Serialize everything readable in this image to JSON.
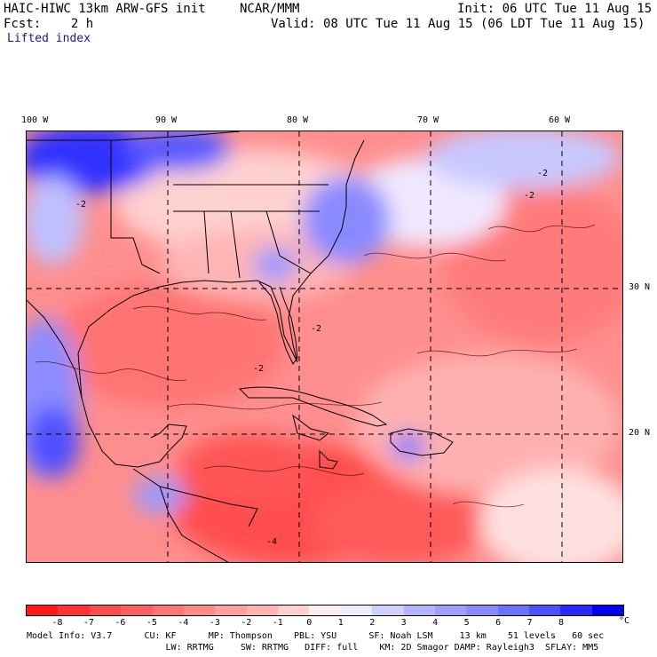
{
  "header": {
    "model": "HAIC-HIWC 13km ARW-GFS init",
    "org": "NCAR/MMM",
    "init": "Init: 06 UTC Tue 11 Aug 15",
    "fcst": "Fcst:    2 h",
    "valid": "Valid: 08 UTC Tue 11 Aug 15 (06 LDT Tue 11 Aug 15)",
    "field": "Lifted index"
  },
  "map": {
    "lon_labels": [
      "100 W",
      "90 W",
      "80 W",
      "70 W",
      "60 W"
    ],
    "lat_labels": [
      "30 N",
      "20 N"
    ],
    "contour_labels": [
      "-2",
      "-2",
      "-2",
      "-2",
      "-2",
      "-4"
    ]
  },
  "colorbar": {
    "ticks": [
      "-8",
      "-7",
      "-6",
      "-5",
      "-4",
      "-3",
      "-2",
      "-1",
      "0",
      "1",
      "2",
      "3",
      "4",
      "5",
      "6",
      "7",
      "8"
    ],
    "unit": "°C",
    "colors": [
      "#ff1a1a",
      "#ff3333",
      "#ff4d4d",
      "#ff6161",
      "#ff7676",
      "#ff8a8a",
      "#ff9f9f",
      "#ffb4b4",
      "#ffd0d0",
      "#ffecec",
      "#ececff",
      "#d0d0ff",
      "#b4b4ff",
      "#9f9fff",
      "#8a8aff",
      "#7070ff",
      "#5050ff",
      "#2a2aff",
      "#0000ee"
    ]
  },
  "footer": {
    "line1": "Model Info: V3.7      CU: KF      MP: Thompson    PBL: YSU      SF: Noah LSM     13 km    51 levels   60 sec",
    "line2": "                          LW: RRTMG     SW: RRTMG   DIFF: full    KM: 2D Smagor DAMP: Rayleigh3  SFLAY: MM5"
  }
}
